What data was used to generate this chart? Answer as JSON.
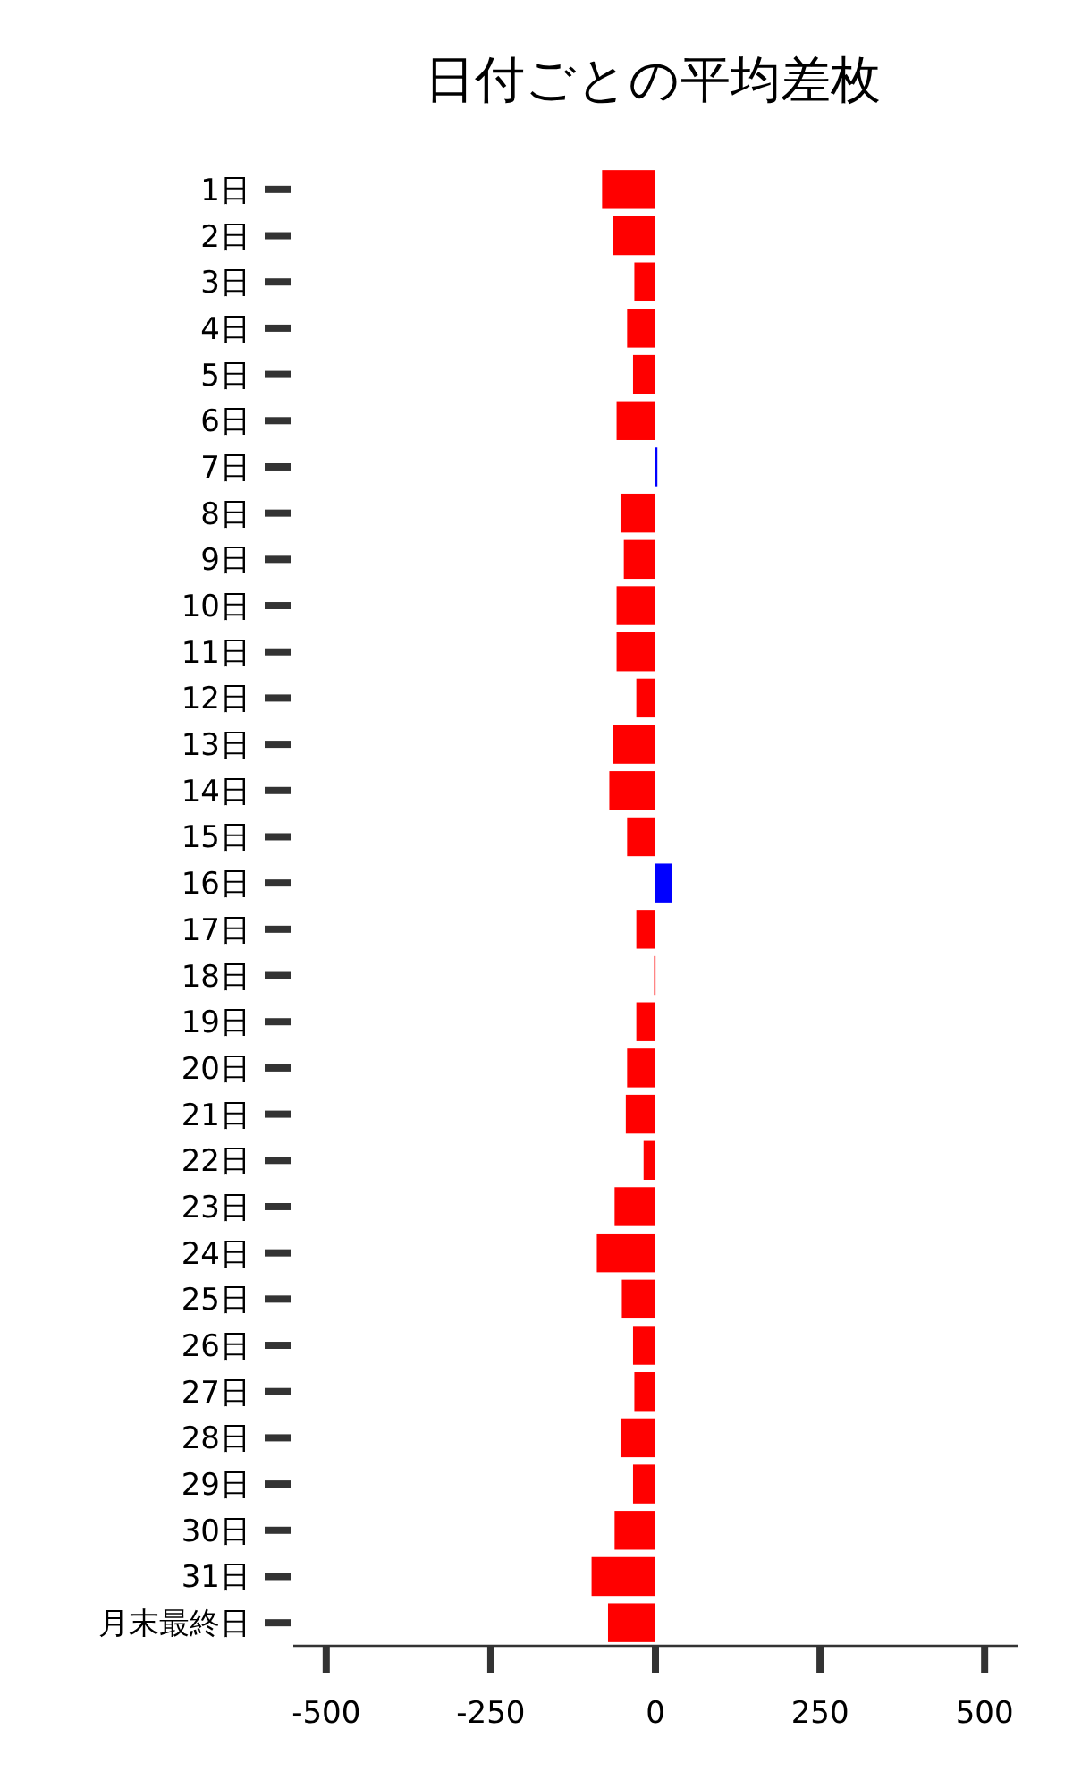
{
  "chart_data": {
    "type": "bar",
    "orientation": "horizontal",
    "title": "日付ごとの平均差枚",
    "categories": [
      "1日",
      "2日",
      "3日",
      "4日",
      "5日",
      "6日",
      "7日",
      "8日",
      "9日",
      "10日",
      "11日",
      "12日",
      "13日",
      "14日",
      "15日",
      "16日",
      "17日",
      "18日",
      "19日",
      "20日",
      "21日",
      "22日",
      "23日",
      "24日",
      "25日",
      "26日",
      "27日",
      "28日",
      "29日",
      "30日",
      "31日",
      "月末最終日"
    ],
    "values": [
      -81,
      -65,
      -32,
      -43,
      -34,
      -59,
      3,
      -53,
      -48,
      -59,
      -59,
      -29,
      -64,
      -70,
      -43,
      25,
      -29,
      -2,
      -29,
      -43,
      -45,
      -18,
      -62,
      -89,
      -51,
      -34,
      -32,
      -53,
      -34,
      -62,
      -97,
      -72
    ],
    "colors": [
      "#ff0000",
      "#ff0000",
      "#ff0000",
      "#ff0000",
      "#ff0000",
      "#ff0000",
      "#0000ff",
      "#ff0000",
      "#ff0000",
      "#ff0000",
      "#ff0000",
      "#ff0000",
      "#ff0000",
      "#ff0000",
      "#ff0000",
      "#0000ff",
      "#ff0000",
      "#ff0000",
      "#ff0000",
      "#ff0000",
      "#ff0000",
      "#ff0000",
      "#ff0000",
      "#ff0000",
      "#ff0000",
      "#ff0000",
      "#ff0000",
      "#ff0000",
      "#ff0000",
      "#ff0000",
      "#ff0000",
      "#ff0000"
    ],
    "xlim": [
      -550,
      550
    ],
    "xticks": [
      -500,
      -250,
      0,
      250,
      500
    ]
  }
}
